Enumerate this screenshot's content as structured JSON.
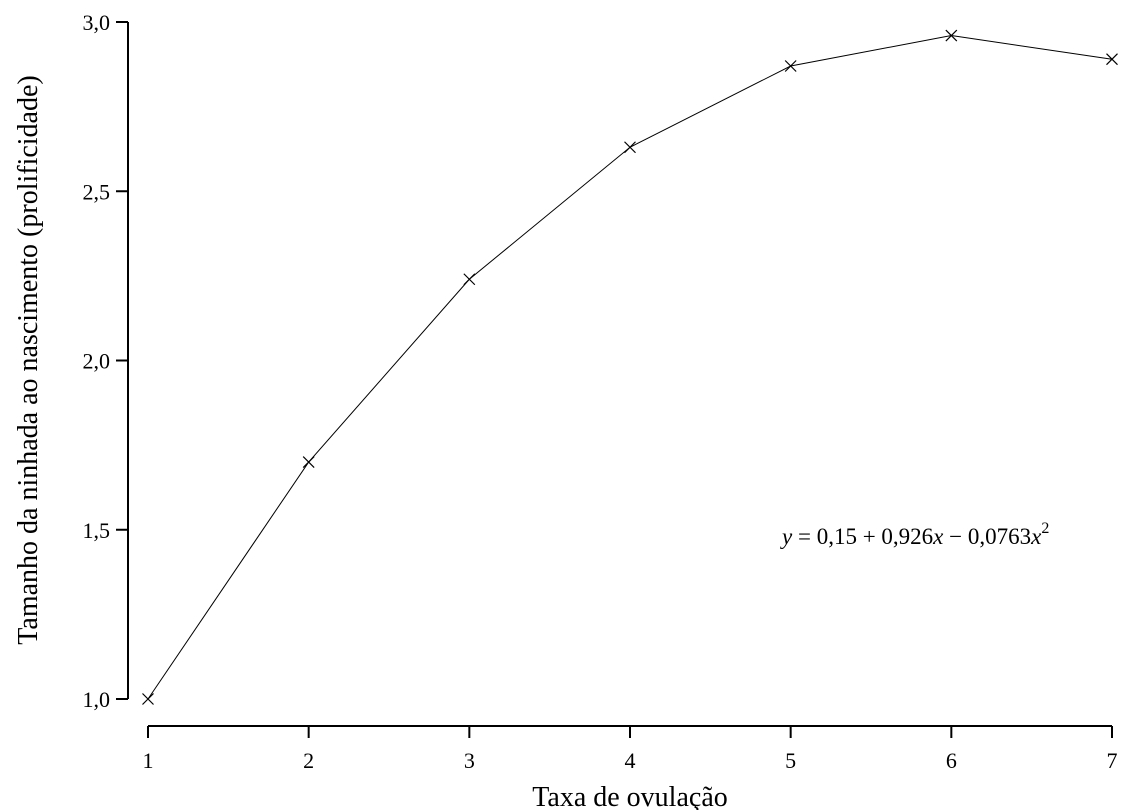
{
  "chart_data": {
    "type": "line",
    "xlabel": "Taxa de ovulação",
    "ylabel": "Tamanho da ninhada ao nascimento (prolificidade)",
    "x": [
      1,
      2,
      3,
      4,
      5,
      6,
      7
    ],
    "series": [
      {
        "values": [
          1.0,
          1.7,
          2.24,
          2.63,
          2.87,
          2.96,
          2.89
        ]
      }
    ],
    "xlim": [
      1,
      7
    ],
    "ylim": [
      1.0,
      3.0
    ],
    "xticks": [
      "1",
      "2",
      "3",
      "4",
      "5",
      "6",
      "7"
    ],
    "yticks": [
      1.0,
      1.5,
      2.0,
      2.5,
      3.0
    ],
    "ytick_labels": [
      "1,0",
      "1,5",
      "2,0",
      "2,5",
      "3,0"
    ],
    "marker": "x",
    "grid": false,
    "annotation": {
      "y_var": "y",
      "equals": " = 0,15 + 0,926",
      "x_var1": "x",
      "minus": " − 0,0763",
      "x_var2": "x",
      "exponent": "2"
    }
  }
}
